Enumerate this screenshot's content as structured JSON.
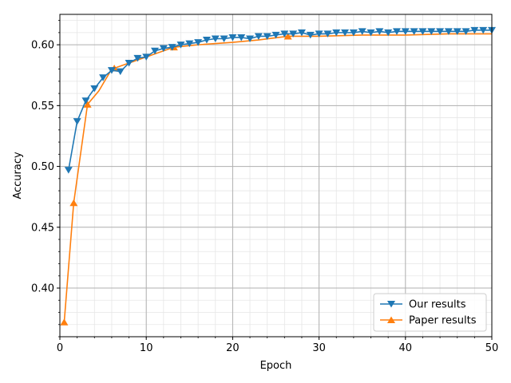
{
  "chart_data": {
    "type": "line",
    "xlabel": "Epoch",
    "ylabel": "Accuracy",
    "xlim": [
      0,
      50
    ],
    "ylim": [
      0.36,
      0.625
    ],
    "xticks": [
      0,
      10,
      20,
      30,
      40,
      50
    ],
    "yticks": [
      0.4,
      0.45,
      0.5,
      0.55,
      0.6
    ],
    "xtick_labels": [
      "0",
      "10",
      "20",
      "30",
      "40",
      "50"
    ],
    "ytick_labels": [
      "0.40",
      "0.45",
      "0.50",
      "0.55",
      "0.60"
    ],
    "grid": true,
    "minor_grid": true,
    "legend_position": "lower-right",
    "series": [
      {
        "name": "Our results",
        "color": "#1f77b4",
        "marker": "triangle-down",
        "x": [
          1,
          2,
          3,
          4,
          5,
          6,
          7,
          8,
          9,
          10,
          11,
          12,
          13,
          14,
          15,
          16,
          17,
          18,
          19,
          20,
          21,
          22,
          23,
          24,
          25,
          26,
          27,
          28,
          29,
          30,
          31,
          32,
          33,
          34,
          35,
          36,
          37,
          38,
          39,
          40,
          41,
          42,
          43,
          44,
          45,
          46,
          47,
          48,
          49,
          50
        ],
        "y": [
          0.497,
          0.537,
          0.554,
          0.564,
          0.573,
          0.579,
          0.578,
          0.585,
          0.589,
          0.59,
          0.595,
          0.597,
          0.598,
          0.6,
          0.601,
          0.602,
          0.604,
          0.605,
          0.605,
          0.606,
          0.606,
          0.605,
          0.607,
          0.607,
          0.608,
          0.609,
          0.609,
          0.61,
          0.608,
          0.609,
          0.609,
          0.61,
          0.61,
          0.61,
          0.611,
          0.61,
          0.611,
          0.61,
          0.611,
          0.611,
          0.611,
          0.611,
          0.611,
          0.611,
          0.611,
          0.611,
          0.611,
          0.612,
          0.612,
          0.612
        ]
      },
      {
        "name": "Paper results",
        "color": "#ff7f0e",
        "marker": "triangle-up",
        "x": [
          0.5,
          1.6,
          3.2,
          4.5,
          6.0,
          8.0,
          10.0,
          13.2,
          16.0,
          20.0,
          23.0,
          26.4,
          30.0,
          35.0,
          40.0,
          45.0,
          50.0
        ],
        "y": [
          0.372,
          0.47,
          0.551,
          0.562,
          0.58,
          0.585,
          0.59,
          0.598,
          0.6,
          0.602,
          0.604,
          0.607,
          0.607,
          0.608,
          0.608,
          0.609,
          0.609
        ],
        "marker_x": [
          0.5,
          1.6,
          3.2,
          6.3,
          13.2,
          26.4
        ]
      }
    ]
  }
}
